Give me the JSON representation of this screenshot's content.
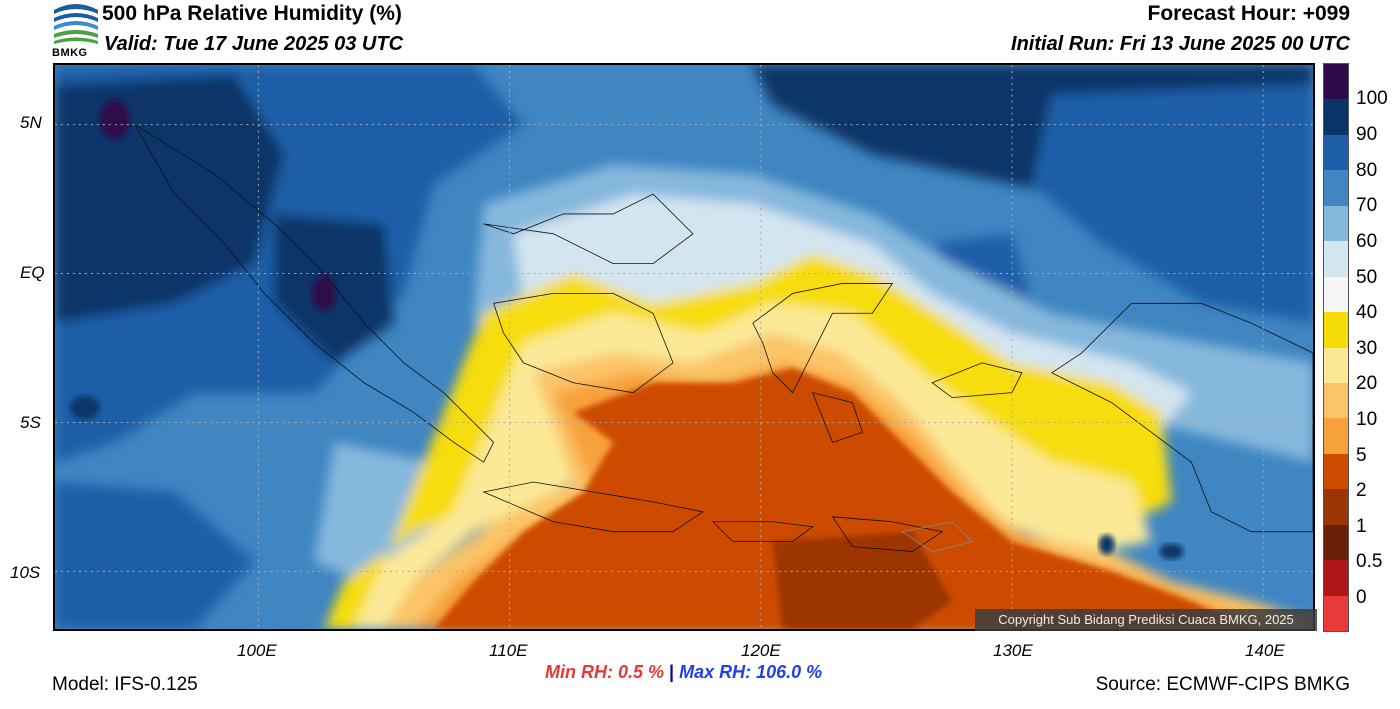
{
  "header": {
    "title": "500 hPa Relative Humidity (%)",
    "valid": "Valid: Tue 17 June 2025 03 UTC",
    "forecast_hour": "Forecast Hour: +099",
    "initial_run": "Initial Run: Fri 13 June 2025 00 UTC"
  },
  "logo": {
    "text": "BMKG",
    "icon": "bmkg-logo-icon"
  },
  "map": {
    "lat_labels": [
      "5N",
      "EQ",
      "5S",
      "10S"
    ],
    "lon_labels": [
      "100E",
      "110E",
      "120E",
      "130E",
      "140E"
    ],
    "copyright": "Copyright Sub Bidang Prediksi Cuaca BMKG, 2025"
  },
  "colorbar": {
    "labels": [
      "100",
      "90",
      "80",
      "70",
      "60",
      "50",
      "40",
      "30",
      "20",
      "10",
      "5",
      "2",
      "1",
      "0.5",
      "0"
    ],
    "colors": [
      "#2d0a4a",
      "#0a3568",
      "#1c5fa8",
      "#3f86c2",
      "#86b8dd",
      "#d3e5f1",
      "#f6f6f6",
      "#f7dd08",
      "#fce998",
      "#fbc468",
      "#f7a13a",
      "#cd4c02",
      "#9c3504",
      "#6a2008",
      "#b0151a",
      "#e83a3a"
    ]
  },
  "footer": {
    "min_rh_label": "Min RH:",
    "min_rh_value": "0.5 %",
    "separator": "|",
    "max_rh_label": "Max RH:",
    "max_rh_value": "106.0 %",
    "model": "Model: IFS-0.125",
    "source": "Source: ECMWF-CIPS BMKG"
  }
}
